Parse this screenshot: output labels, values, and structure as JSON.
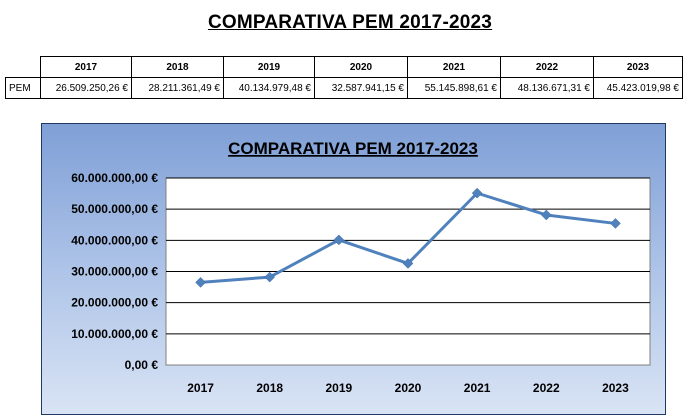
{
  "title": "COMPARATIVA PEM 2017-2023",
  "table": {
    "row_label": "PEM",
    "headers": [
      "2017",
      "2018",
      "2019",
      "2020",
      "2021",
      "2022",
      "2023"
    ],
    "values": [
      "26.509.250,26 €",
      "28.211.361,49 €",
      "40.134.979,48 €",
      "32.587.941,15 €",
      "55.145.898,61 €",
      "48.136.671,31 €",
      "45.423.019,98 €"
    ]
  },
  "chart_data": {
    "type": "line",
    "title": "COMPARATIVA PEM 2017-2023",
    "categories": [
      "2017",
      "2018",
      "2019",
      "2020",
      "2021",
      "2022",
      "2023"
    ],
    "series": [
      {
        "values": [
          26509250.26,
          28211361.49,
          40134979.48,
          32587941.15,
          55145898.61,
          48136671.31,
          45423019.98
        ]
      }
    ],
    "ylim": [
      0,
      60000000
    ],
    "yticks": [
      0,
      10000000,
      20000000,
      30000000,
      40000000,
      50000000,
      60000000
    ],
    "ytick_labels": [
      "0,00 €",
      "10.000.000,00 €",
      "20.000.000,00 €",
      "30.000.000,00 €",
      "40.000.000,00 €",
      "50.000.000,00 €",
      "60.000.000,00 €"
    ],
    "grid": true,
    "legend": "none",
    "colors": {
      "line": "#4f81bd",
      "marker": "#4f81bd",
      "plot_bg": "#ffffff",
      "grid": "#000000"
    }
  }
}
